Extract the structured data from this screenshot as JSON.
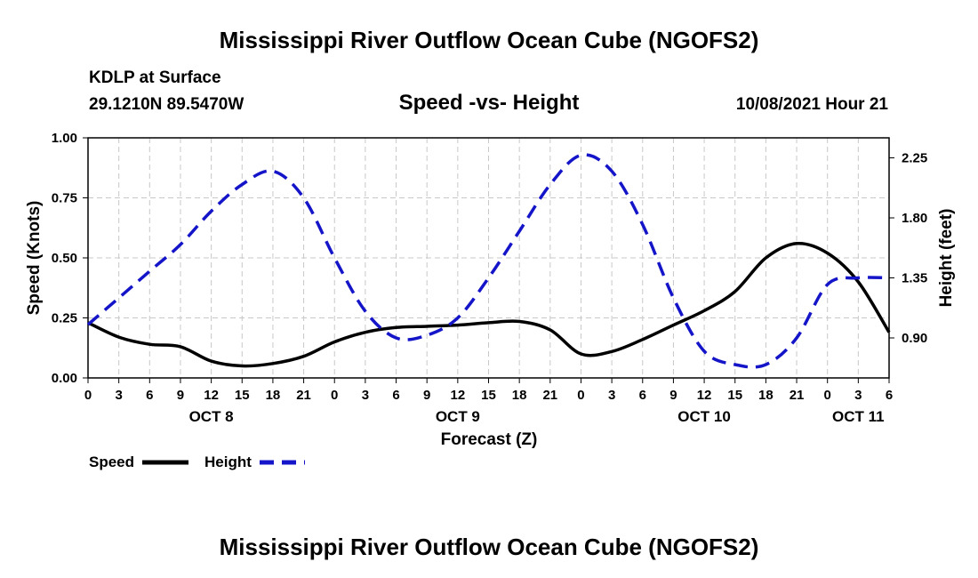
{
  "header": {
    "title": "Mississippi River Outflow Ocean Cube (NGOFS2)",
    "station": "KDLP at Surface",
    "coords": "29.1210N  89.5470W",
    "subtitle": "Speed -vs- Height",
    "datetime": "10/08/2021 Hour 21"
  },
  "footer": {
    "title": "Mississippi River Outflow Ocean Cube (NGOFS2)"
  },
  "colors": {
    "speed": "#000000",
    "height": "#1414c8",
    "grid": "#c8c8c8"
  },
  "chart_data": {
    "type": "line",
    "title": "Speed -vs- Height",
    "xlabel": "Forecast (Z)",
    "ylabel": "Speed (Knots)",
    "y2label": "Height (feet)",
    "xlim": [
      0,
      78
    ],
    "ylim": [
      0,
      1
    ],
    "y2lim": [
      0.6,
      2.4
    ],
    "grid": true,
    "xticks": [
      0,
      3,
      6,
      9,
      12,
      15,
      18,
      21,
      24,
      27,
      30,
      33,
      36,
      39,
      42,
      45,
      48,
      51,
      54,
      57,
      60,
      63,
      66,
      69,
      72,
      75,
      78
    ],
    "xtick_labels": [
      "0",
      "3",
      "6",
      "9",
      "12",
      "15",
      "18",
      "21",
      "0",
      "3",
      "6",
      "9",
      "12",
      "15",
      "18",
      "21",
      "0",
      "3",
      "6",
      "9",
      "12",
      "15",
      "18",
      "21",
      "0",
      "3",
      "6"
    ],
    "date_labels": [
      {
        "x": 12,
        "label": "OCT 8"
      },
      {
        "x": 36,
        "label": "OCT 9"
      },
      {
        "x": 60,
        "label": "OCT 10"
      },
      {
        "x": 75,
        "label": "OCT 11"
      }
    ],
    "yticks": [
      0.0,
      0.25,
      0.5,
      0.75,
      1.0
    ],
    "ytick_labels": [
      "0.00",
      "0.25",
      "0.50",
      "0.75",
      "1.00"
    ],
    "y2ticks": [
      0.9,
      1.35,
      1.8,
      2.25
    ],
    "y2tick_labels": [
      "0.90",
      "1.35",
      "1.80",
      "2.25"
    ],
    "legend": [
      {
        "name": "Speed",
        "style": "solid"
      },
      {
        "name": "Height",
        "style": "dashed"
      }
    ],
    "series": [
      {
        "name": "Speed",
        "axis": "left",
        "style": "solid",
        "x": [
          0,
          3,
          6,
          9,
          12,
          15,
          18,
          21,
          24,
          27,
          30,
          33,
          36,
          39,
          42,
          45,
          48,
          51,
          54,
          57,
          60,
          63,
          66,
          69,
          72,
          75,
          78
        ],
        "values": [
          0.23,
          0.17,
          0.14,
          0.13,
          0.07,
          0.05,
          0.06,
          0.09,
          0.15,
          0.19,
          0.21,
          0.215,
          0.22,
          0.23,
          0.235,
          0.2,
          0.1,
          0.11,
          0.16,
          0.22,
          0.28,
          0.36,
          0.5,
          0.56,
          0.52,
          0.4,
          0.19
        ]
      },
      {
        "name": "Height",
        "axis": "right",
        "style": "dashed",
        "x": [
          0,
          3,
          6,
          9,
          12,
          15,
          18,
          21,
          24,
          27,
          30,
          33,
          36,
          39,
          42,
          45,
          48,
          51,
          54,
          57,
          60,
          63,
          66,
          69,
          72,
          75,
          78
        ],
        "values": [
          1.0,
          1.2,
          1.4,
          1.6,
          1.85,
          2.05,
          2.15,
          1.95,
          1.5,
          1.1,
          0.9,
          0.92,
          1.05,
          1.35,
          1.7,
          2.05,
          2.27,
          2.15,
          1.75,
          1.2,
          0.8,
          0.7,
          0.7,
          0.9,
          1.3,
          1.35,
          1.35
        ]
      }
    ]
  }
}
